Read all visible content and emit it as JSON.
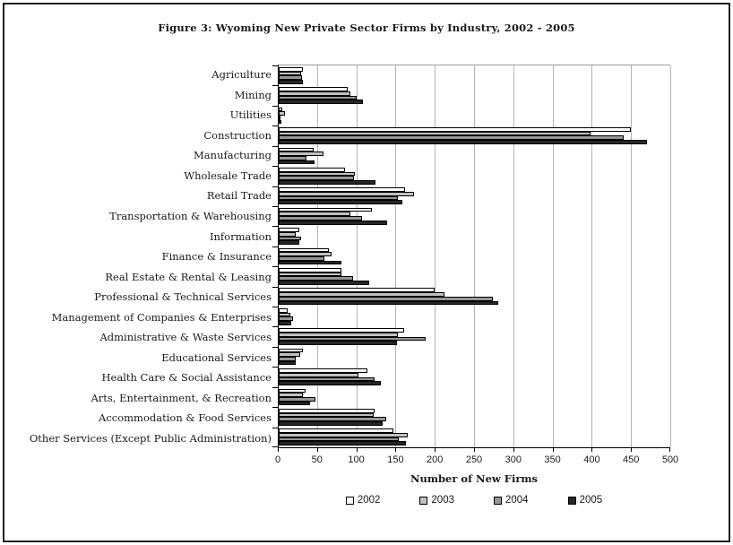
{
  "chart": {
    "title": "Figure 3: Wyoming New Private Sector Firms by Industry, 2002 - 2005",
    "xlabel": "Number of New Firms"
  },
  "chart_data": {
    "type": "bar",
    "orientation": "horizontal",
    "title": "Figure 3: Wyoming New Private Sector Firms by Industry, 2002 - 2005",
    "xlabel": "Number of New Firms",
    "xlim": [
      0,
      500
    ],
    "xticks": [
      0,
      50,
      100,
      150,
      200,
      250,
      300,
      350,
      400,
      450,
      500
    ],
    "grid": true,
    "legend_position": "bottom",
    "gridline_color": "#b3b3b3",
    "categories": [
      "Agriculture",
      "Mining",
      "Utilities",
      "Construction",
      "Manufacturing",
      "Wholesale Trade",
      "Retail Trade",
      "Transportation & Warehousing",
      "Information",
      "Finance & Insurance",
      "Real Estate & Rental & Leasing",
      "Professional & Technical Services",
      "Management of Companies & Enterprises",
      "Administrative & Waste Services",
      "Educational Services",
      "Health Care & Social Assistance",
      "Arts, Entertainment, & Recreation",
      "Accommodation & Food Services",
      "Other Services (Except Public Administration)"
    ],
    "series": [
      {
        "name": "2002",
        "color": "#ffffff",
        "values": [
          31,
          88,
          5,
          450,
          45,
          85,
          161,
          119,
          26,
          64,
          80,
          199,
          11,
          160,
          31,
          113,
          34,
          122,
          146
        ]
      },
      {
        "name": "2003",
        "color": "#c0c0c0",
        "values": [
          29,
          92,
          8,
          398,
          57,
          97,
          173,
          92,
          22,
          67,
          80,
          212,
          15,
          152,
          28,
          102,
          31,
          121,
          165
        ]
      },
      {
        "name": "2004",
        "color": "#969696",
        "values": [
          30,
          99,
          2,
          440,
          35,
          96,
          152,
          106,
          29,
          58,
          95,
          274,
          18,
          188,
          22,
          122,
          47,
          137,
          153
        ]
      },
      {
        "name": "2005",
        "color": "#262626",
        "values": [
          31,
          108,
          3,
          470,
          46,
          124,
          158,
          138,
          26,
          80,
          115,
          280,
          16,
          151,
          22,
          131,
          40,
          133,
          162
        ]
      }
    ]
  }
}
